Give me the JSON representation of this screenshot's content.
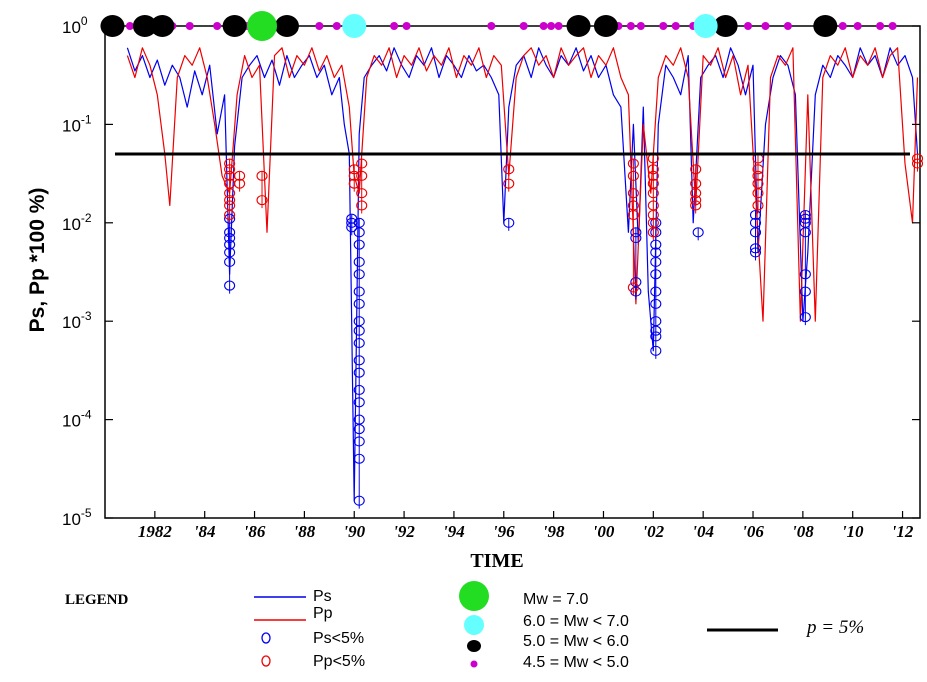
{
  "chart_data": {
    "type": "line",
    "title": "",
    "xlabel": "TIME",
    "ylabel": "Ps, Pp *100 %)",
    "yscale": "log",
    "xlim": [
      1980.0,
      2012.7
    ],
    "ylim": [
      1e-05,
      1
    ],
    "x_ticks": [
      {
        "x": 1982,
        "label": "1982"
      },
      {
        "x": 1984,
        "label": "'84"
      },
      {
        "x": 1986,
        "label": "'86"
      },
      {
        "x": 1988,
        "label": "'88"
      },
      {
        "x": 1990,
        "label": "'90"
      },
      {
        "x": 1992,
        "label": "'92"
      },
      {
        "x": 1994,
        "label": "'94"
      },
      {
        "x": 1996,
        "label": "'96"
      },
      {
        "x": 1998,
        "label": "'98"
      },
      {
        "x": 2000,
        "label": "'00"
      },
      {
        "x": 2002,
        "label": "'02"
      },
      {
        "x": 2004,
        "label": "'04"
      },
      {
        "x": 2006,
        "label": "'06"
      },
      {
        "x": 2008,
        "label": "'08"
      },
      {
        "x": 2010,
        "label": "'10"
      },
      {
        "x": 2012,
        "label": "'12"
      }
    ],
    "y_ticks": [
      {
        "y": 1,
        "base": "10",
        "exp": "0"
      },
      {
        "y": 0.1,
        "base": "10",
        "exp": "-1"
      },
      {
        "y": 0.01,
        "base": "10",
        "exp": "-2"
      },
      {
        "y": 0.001,
        "base": "10",
        "exp": "-3"
      },
      {
        "y": 0.0001,
        "base": "10",
        "exp": "-4"
      },
      {
        "y": 1e-05,
        "base": "10",
        "exp": "-5"
      }
    ],
    "threshold": {
      "y": 0.05,
      "label": "p = 5%"
    },
    "series": [
      {
        "name": "Ps",
        "color": "#0000ee",
        "x": [
          1980.9,
          1981.2,
          1981.5,
          1981.8,
          1982.1,
          1982.4,
          1982.7,
          1983.0,
          1983.3,
          1983.6,
          1983.9,
          1984.2,
          1984.5,
          1984.8,
          1985.0,
          1985.2,
          1985.5,
          1985.8,
          1986.1,
          1986.4,
          1986.7,
          1987.0,
          1987.3,
          1987.6,
          1987.9,
          1988.2,
          1988.5,
          1988.8,
          1989.1,
          1989.4,
          1989.6,
          1989.8,
          1990.0,
          1990.2,
          1990.4,
          1990.7,
          1991.0,
          1991.3,
          1991.6,
          1991.9,
          1992.2,
          1992.5,
          1992.8,
          1993.1,
          1993.4,
          1993.7,
          1994.0,
          1994.3,
          1994.6,
          1994.9,
          1995.2,
          1995.5,
          1995.8,
          1996.0,
          1996.2,
          1996.5,
          1996.8,
          1997.1,
          1997.4,
          1997.7,
          1998.0,
          1998.3,
          1998.6,
          1998.9,
          1999.2,
          1999.5,
          1999.8,
          2000.1,
          2000.4,
          2000.7,
          2001.0,
          2001.2,
          2001.4,
          2001.6,
          2001.8,
          2002.0,
          2002.2,
          2002.5,
          2002.8,
          2003.1,
          2003.4,
          2003.6,
          2003.9,
          2004.2,
          2004.5,
          2004.8,
          2005.1,
          2005.4,
          2005.7,
          2006.0,
          2006.2,
          2006.5,
          2006.8,
          2007.1,
          2007.4,
          2007.7,
          2008.0,
          2008.2,
          2008.5,
          2008.8,
          2009.1,
          2009.4,
          2009.7,
          2010.0,
          2010.3,
          2010.6,
          2010.9,
          2011.2,
          2011.5,
          2011.8,
          2012.1,
          2012.4,
          2012.6
        ],
        "y": [
          0.6,
          0.35,
          0.5,
          0.3,
          0.45,
          0.25,
          0.4,
          0.3,
          0.15,
          0.35,
          0.2,
          0.4,
          0.08,
          0.2,
          0.003,
          0.06,
          0.3,
          0.4,
          0.5,
          0.3,
          0.45,
          0.25,
          0.5,
          0.3,
          0.4,
          0.5,
          0.3,
          0.4,
          0.2,
          0.3,
          0.1,
          0.05,
          1.5e-05,
          0.08,
          0.3,
          0.4,
          0.5,
          0.35,
          0.6,
          0.4,
          0.3,
          0.5,
          0.4,
          0.6,
          0.3,
          0.5,
          0.4,
          0.3,
          0.5,
          0.35,
          0.4,
          0.3,
          0.2,
          0.01,
          0.15,
          0.4,
          0.5,
          0.3,
          0.6,
          0.4,
          0.3,
          0.5,
          0.4,
          0.6,
          0.35,
          0.5,
          0.3,
          0.4,
          0.2,
          0.15,
          0.008,
          0.1,
          0.006,
          0.15,
          0.002,
          0.0005,
          0.1,
          0.4,
          0.3,
          0.2,
          0.5,
          0.01,
          0.3,
          0.4,
          0.5,
          0.3,
          0.6,
          0.4,
          0.2,
          0.4,
          0.005,
          0.1,
          0.3,
          0.5,
          0.4,
          0.2,
          0.001,
          0.005,
          0.2,
          0.4,
          0.3,
          0.5,
          0.4,
          0.3,
          0.6,
          0.4,
          0.5,
          0.3,
          0.6,
          0.4,
          0.5,
          0.3,
          0.05
        ]
      },
      {
        "name": "Pp",
        "color": "#ee0000",
        "x": [
          1980.9,
          1981.2,
          1981.5,
          1981.8,
          1982.1,
          1982.4,
          1982.6,
          1982.9,
          1983.2,
          1983.5,
          1983.8,
          1984.1,
          1984.4,
          1984.7,
          1985.0,
          1985.3,
          1985.6,
          1985.9,
          1986.2,
          1986.5,
          1986.8,
          1987.1,
          1987.4,
          1987.7,
          1988.0,
          1988.3,
          1988.6,
          1988.9,
          1989.2,
          1989.5,
          1989.8,
          1990.0,
          1990.2,
          1990.5,
          1990.8,
          1991.1,
          1991.4,
          1991.7,
          1992.0,
          1992.3,
          1992.6,
          1992.9,
          1993.2,
          1993.5,
          1993.8,
          1994.1,
          1994.4,
          1994.7,
          1995.0,
          1995.3,
          1995.6,
          1995.9,
          1996.2,
          1996.5,
          1996.8,
          1997.1,
          1997.4,
          1997.7,
          1998.0,
          1998.3,
          1998.6,
          1998.9,
          1999.2,
          1999.5,
          1999.8,
          2000.1,
          2000.4,
          2000.7,
          2001.0,
          2001.3,
          2001.6,
          2001.9,
          2002.2,
          2002.5,
          2002.8,
          2003.1,
          2003.4,
          2003.7,
          2004.0,
          2004.3,
          2004.6,
          2004.9,
          2005.2,
          2005.5,
          2005.8,
          2006.1,
          2006.4,
          2006.7,
          2007.0,
          2007.3,
          2007.6,
          2007.9,
          2008.2,
          2008.5,
          2008.8,
          2009.1,
          2009.4,
          2009.7,
          2010.0,
          2010.3,
          2010.6,
          2010.9,
          2011.2,
          2011.5,
          2011.8,
          2012.1,
          2012.4,
          2012.6
        ],
        "y": [
          0.5,
          0.3,
          0.6,
          0.4,
          0.2,
          0.05,
          0.015,
          0.3,
          0.5,
          0.4,
          0.6,
          0.3,
          0.1,
          0.03,
          0.02,
          0.2,
          0.5,
          0.3,
          0.4,
          0.008,
          0.5,
          0.6,
          0.3,
          0.5,
          0.4,
          0.6,
          0.35,
          0.5,
          0.3,
          0.4,
          0.15,
          0.03,
          0.02,
          0.3,
          0.5,
          0.4,
          0.6,
          0.3,
          0.5,
          0.4,
          0.6,
          0.35,
          0.5,
          0.4,
          0.6,
          0.3,
          0.5,
          0.4,
          0.6,
          0.3,
          0.5,
          0.4,
          0.03,
          0.3,
          0.5,
          0.6,
          0.4,
          0.5,
          0.3,
          0.6,
          0.4,
          0.5,
          0.6,
          0.3,
          0.5,
          0.4,
          0.6,
          0.3,
          0.2,
          0.0015,
          0.1,
          0.02,
          0.3,
          0.5,
          0.4,
          0.6,
          0.3,
          0.015,
          0.5,
          0.4,
          0.6,
          0.3,
          0.5,
          0.2,
          0.4,
          0.02,
          0.001,
          0.3,
          0.5,
          0.4,
          0.6,
          0.001,
          0.2,
          0.001,
          0.3,
          0.5,
          0.4,
          0.6,
          0.3,
          0.5,
          0.4,
          0.6,
          0.3,
          0.5,
          0.6,
          0.04,
          0.01,
          0.3
        ]
      }
    ],
    "ps_below_5": [
      {
        "x": 1985.0,
        "y": [
          0.011,
          0.008,
          0.007,
          0.006,
          0.005,
          0.004,
          0.0023
        ]
      },
      {
        "x": 1989.9,
        "y": [
          0.011,
          0.01,
          0.009
        ]
      },
      {
        "x": 1990.2,
        "y": [
          0.01,
          0.008,
          0.006,
          0.004,
          0.003,
          0.002,
          0.0015,
          0.001,
          0.0008,
          0.0006,
          0.0004,
          0.0003,
          0.0002,
          0.00015,
          0.0001,
          8e-05,
          6e-05,
          4e-05,
          1.5e-05
        ]
      },
      {
        "x": 1996.2,
        "y": [
          0.01
        ]
      },
      {
        "x": 2001.3,
        "y": [
          0.008,
          0.007,
          0.0025,
          0.002
        ]
      },
      {
        "x": 2002.1,
        "y": [
          0.01,
          0.008,
          0.006,
          0.005,
          0.004,
          0.003,
          0.002,
          0.0015,
          0.001,
          0.0008,
          0.0007,
          0.0005
        ]
      },
      {
        "x": 2003.8,
        "y": [
          0.008
        ]
      },
      {
        "x": 2006.1,
        "y": [
          0.012,
          0.01,
          0.008,
          0.0055,
          0.005
        ]
      },
      {
        "x": 2008.1,
        "y": [
          0.012,
          0.011,
          0.01,
          0.008,
          0.003,
          0.002,
          0.0011
        ]
      }
    ],
    "pp_below_5": [
      {
        "x": 1985.0,
        "y": [
          0.04,
          0.035,
          0.03,
          0.025,
          0.02,
          0.017,
          0.015,
          0.012
        ]
      },
      {
        "x": 1985.4,
        "y": [
          0.03,
          0.025
        ]
      },
      {
        "x": 1986.3,
        "y": [
          0.03,
          0.017
        ]
      },
      {
        "x": 1990.0,
        "y": [
          0.035,
          0.03,
          0.025
        ]
      },
      {
        "x": 1990.3,
        "y": [
          0.04,
          0.03,
          0.02,
          0.015
        ]
      },
      {
        "x": 1996.2,
        "y": [
          0.035,
          0.025
        ]
      },
      {
        "x": 2001.2,
        "y": [
          0.04,
          0.03,
          0.02,
          0.015,
          0.012,
          0.0022
        ]
      },
      {
        "x": 2002.0,
        "y": [
          0.045,
          0.035,
          0.03,
          0.025,
          0.02,
          0.015,
          0.012,
          0.01,
          0.008
        ]
      },
      {
        "x": 2003.7,
        "y": [
          0.035,
          0.025,
          0.02,
          0.017,
          0.015
        ]
      },
      {
        "x": 2006.2,
        "y": [
          0.045,
          0.035,
          0.03,
          0.025,
          0.02,
          0.015
        ]
      },
      {
        "x": 2012.6,
        "y": [
          0.045,
          0.04
        ]
      }
    ],
    "earthquakes": [
      {
        "x": 1980.3,
        "class": "5.0-6.0"
      },
      {
        "x": 1981.6,
        "class": "5.0-6.0"
      },
      {
        "x": 1982.3,
        "class": "5.0-6.0"
      },
      {
        "x": 1985.2,
        "class": "5.0-6.0"
      },
      {
        "x": 1987.3,
        "class": "5.0-6.0"
      },
      {
        "x": 1999.0,
        "class": "5.0-6.0"
      },
      {
        "x": 2000.1,
        "class": "5.0-6.0"
      },
      {
        "x": 2004.9,
        "class": "5.0-6.0"
      },
      {
        "x": 2008.9,
        "class": "5.0-6.0"
      },
      {
        "x": 1986.3,
        "class": "7.0"
      },
      {
        "x": 1990.0,
        "class": "6.0-7.0"
      },
      {
        "x": 2004.1,
        "class": "6.0-7.0"
      },
      {
        "x": 1981.0,
        "class": "4.5-5.0"
      },
      {
        "x": 1982.7,
        "class": "4.5-5.0"
      },
      {
        "x": 1983.4,
        "class": "4.5-5.0"
      },
      {
        "x": 1984.5,
        "class": "4.5-5.0"
      },
      {
        "x": 1985.7,
        "class": "4.5-5.0"
      },
      {
        "x": 1986.9,
        "class": "4.5-5.0"
      },
      {
        "x": 1988.6,
        "class": "4.5-5.0"
      },
      {
        "x": 1989.3,
        "class": "4.5-5.0"
      },
      {
        "x": 1991.6,
        "class": "4.5-5.0"
      },
      {
        "x": 1992.1,
        "class": "4.5-5.0"
      },
      {
        "x": 1995.5,
        "class": "4.5-5.0"
      },
      {
        "x": 1996.8,
        "class": "4.5-5.0"
      },
      {
        "x": 1997.6,
        "class": "4.5-5.0"
      },
      {
        "x": 1997.9,
        "class": "4.5-5.0"
      },
      {
        "x": 1998.2,
        "class": "4.5-5.0"
      },
      {
        "x": 2000.6,
        "class": "4.5-5.0"
      },
      {
        "x": 2001.1,
        "class": "4.5-5.0"
      },
      {
        "x": 2001.5,
        "class": "4.5-5.0"
      },
      {
        "x": 2002.4,
        "class": "4.5-5.0"
      },
      {
        "x": 2002.9,
        "class": "4.5-5.0"
      },
      {
        "x": 2003.6,
        "class": "4.5-5.0"
      },
      {
        "x": 2005.8,
        "class": "4.5-5.0"
      },
      {
        "x": 2006.5,
        "class": "4.5-5.0"
      },
      {
        "x": 2007.4,
        "class": "4.5-5.0"
      },
      {
        "x": 2009.6,
        "class": "4.5-5.0"
      },
      {
        "x": 2010.2,
        "class": "4.5-5.0"
      },
      {
        "x": 2011.1,
        "class": "4.5-5.0"
      },
      {
        "x": 2011.6,
        "class": "4.5-5.0"
      }
    ],
    "legend": {
      "title": "LEGEND",
      "ps": "Ps",
      "pp": "Pp",
      "ps_low": "Ps<5%",
      "pp_low": "Pp<5%",
      "mw7": "Mw = 7.0",
      "mw6": "6.0 = Mw < 7.0",
      "mw5": "5.0 = Mw < 6.0",
      "mw45": "4.5 = Mw < 5.0",
      "ref": "p = 5%"
    },
    "colors": {
      "ps": "#0000ee",
      "pp": "#ee0000",
      "mw7": "#22dd22",
      "mw6": "#66ffff",
      "mw5": "#000000",
      "mw45": "#cc00cc",
      "threshold": "#000000"
    }
  }
}
